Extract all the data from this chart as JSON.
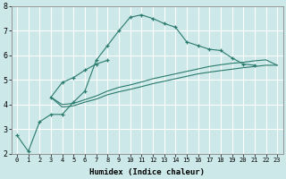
{
  "xlabel": "Humidex (Indice chaleur)",
  "ylabel": "",
  "bg_color": "#cce8e8",
  "line_color": "#2a7a6e",
  "grid_color": "#b0d8d8",
  "x_values": [
    0,
    1,
    2,
    3,
    4,
    5,
    6,
    7,
    8,
    9,
    10,
    11,
    12,
    13,
    14,
    15,
    16,
    17,
    18,
    19,
    20,
    21,
    22,
    23
  ],
  "line_jagged": [
    2.75,
    2.1,
    3.3,
    3.6,
    3.6,
    4.1,
    4.55,
    5.8,
    6.4,
    7.0,
    7.55,
    7.65,
    7.5,
    7.3,
    7.15,
    6.55,
    6.4,
    6.25,
    6.2,
    5.9,
    5.65,
    5.6,
    null,
    null
  ],
  "line_short": [
    null,
    null,
    null,
    4.3,
    4.9,
    5.1,
    5.4,
    5.65,
    5.8,
    null,
    null,
    null,
    null,
    null,
    null,
    null,
    null,
    null,
    null,
    null,
    null,
    null,
    null,
    null
  ],
  "line_lower1": [
    null,
    null,
    null,
    4.3,
    4.0,
    4.05,
    4.2,
    4.35,
    4.55,
    4.7,
    4.8,
    4.92,
    5.05,
    5.15,
    5.25,
    5.35,
    5.45,
    5.55,
    5.62,
    5.68,
    5.72,
    5.78,
    5.82,
    5.6
  ],
  "line_lower2": [
    null,
    null,
    null,
    4.3,
    3.9,
    3.95,
    4.1,
    4.22,
    4.4,
    4.52,
    4.62,
    4.73,
    4.85,
    4.95,
    5.05,
    5.15,
    5.25,
    5.32,
    5.38,
    5.44,
    5.5,
    5.55,
    5.6,
    5.6
  ],
  "ylim": [
    2,
    8
  ],
  "xlim": [
    -0.5,
    23.5
  ],
  "yticks": [
    2,
    3,
    4,
    5,
    6,
    7,
    8
  ],
  "xtick_labels": [
    "0",
    "1",
    "2",
    "3",
    "4",
    "5",
    "6",
    "7",
    "8",
    "9",
    "10",
    "11",
    "12",
    "13",
    "14",
    "15",
    "16",
    "17",
    "18",
    "19",
    "20",
    "21",
    "22",
    "23"
  ]
}
